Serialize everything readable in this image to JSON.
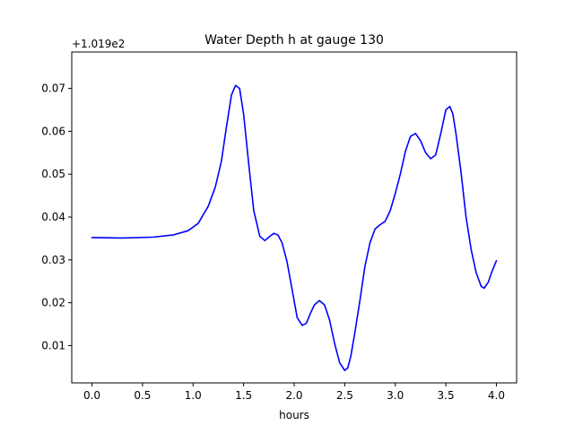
{
  "chart_data": {
    "type": "line",
    "title": "Water Depth h at gauge 130",
    "xlabel": "hours",
    "ylabel": "",
    "y_offset_label": "+1.019e2",
    "xlim": [
      -0.2,
      4.2
    ],
    "ylim": [
      0.0013,
      0.0785
    ],
    "xticks": [
      0.0,
      0.5,
      1.0,
      1.5,
      2.0,
      2.5,
      3.0,
      3.5,
      4.0
    ],
    "xtick_labels": [
      "0.0",
      "0.5",
      "1.0",
      "1.5",
      "2.0",
      "2.5",
      "3.0",
      "3.5",
      "4.0"
    ],
    "yticks": [
      0.01,
      0.02,
      0.03,
      0.04,
      0.05,
      0.06,
      0.07
    ],
    "ytick_labels": [
      "0.01",
      "0.02",
      "0.03",
      "0.04",
      "0.05",
      "0.06",
      "0.07"
    ],
    "grid": false,
    "legend": false,
    "series": [
      {
        "color": "#0000ff",
        "x": [
          0.0,
          0.3,
          0.6,
          0.8,
          0.95,
          1.05,
          1.15,
          1.22,
          1.28,
          1.33,
          1.38,
          1.42,
          1.46,
          1.5,
          1.55,
          1.6,
          1.66,
          1.71,
          1.76,
          1.8,
          1.84,
          1.88,
          1.93,
          1.98,
          2.03,
          2.08,
          2.12,
          2.16,
          2.2,
          2.25,
          2.3,
          2.35,
          2.4,
          2.45,
          2.5,
          2.53,
          2.56,
          2.6,
          2.65,
          2.7,
          2.75,
          2.8,
          2.85,
          2.9,
          2.95,
          3.0,
          3.05,
          3.1,
          3.15,
          3.2,
          3.25,
          3.3,
          3.35,
          3.4,
          3.45,
          3.5,
          3.54,
          3.57,
          3.6,
          3.65,
          3.7,
          3.75,
          3.8,
          3.85,
          3.88,
          3.92,
          3.96,
          4.0
        ],
        "y": [
          0.0352,
          0.0351,
          0.0353,
          0.0358,
          0.0368,
          0.0385,
          0.0425,
          0.047,
          0.053,
          0.061,
          0.0685,
          0.0707,
          0.07,
          0.064,
          0.0525,
          0.0415,
          0.0355,
          0.0345,
          0.0355,
          0.0362,
          0.0358,
          0.034,
          0.0295,
          0.023,
          0.0165,
          0.0147,
          0.0152,
          0.0175,
          0.0195,
          0.0205,
          0.0195,
          0.016,
          0.0105,
          0.006,
          0.0042,
          0.0048,
          0.0075,
          0.013,
          0.0205,
          0.0285,
          0.034,
          0.0372,
          0.0382,
          0.039,
          0.0415,
          0.0455,
          0.05,
          0.0553,
          0.0588,
          0.0595,
          0.0578,
          0.055,
          0.0536,
          0.0545,
          0.0595,
          0.065,
          0.0658,
          0.064,
          0.0595,
          0.0505,
          0.04,
          0.0325,
          0.027,
          0.0238,
          0.0234,
          0.0248,
          0.0275,
          0.0298
        ]
      }
    ]
  }
}
